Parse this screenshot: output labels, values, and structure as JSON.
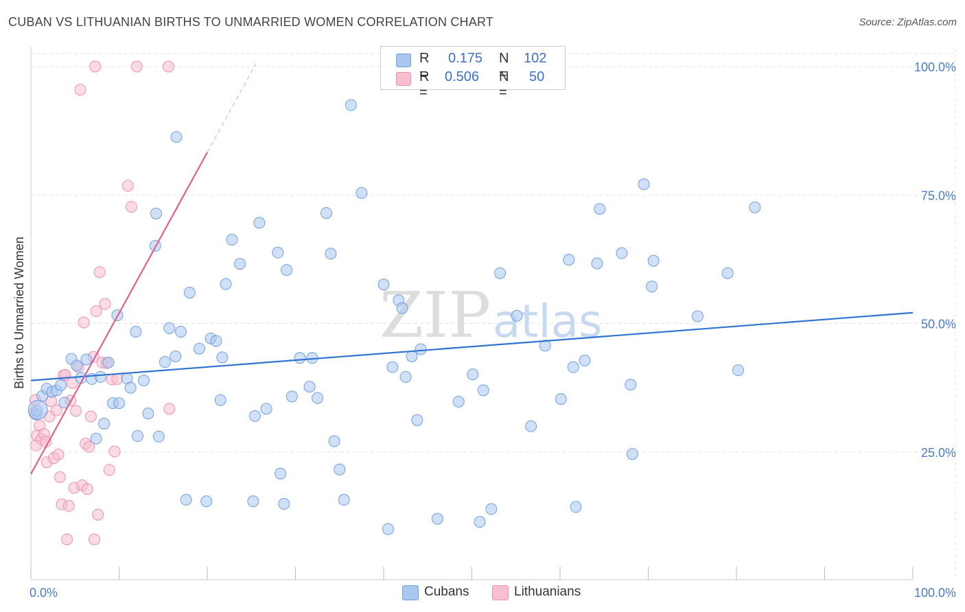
{
  "header": {
    "title": "CUBAN VS LITHUANIAN BIRTHS TO UNMARRIED WOMEN CORRELATION CHART",
    "source": "Source: ZipAtlas.com"
  },
  "watermark": {
    "text_zip": "ZIP",
    "text_atlas": "atlas"
  },
  "legend": {
    "rows": [
      {
        "r_label": "R =",
        "r_value": "0.175",
        "n_label": "N =",
        "n_value": "102"
      },
      {
        "r_label": "R =",
        "r_value": "0.506",
        "n_label": "N =",
        "n_value": "50"
      }
    ],
    "bottom": [
      {
        "name": "Cubans"
      },
      {
        "name": "Lithuanians"
      }
    ]
  },
  "colors": {
    "cubans_fill": "#aac7f0",
    "cubans_stroke": "#6f9fe0",
    "cubans_line": "#2f74d0",
    "lithuanians_fill": "#f7bfd0",
    "lithuanians_stroke": "#ee8fae",
    "lithuanians_line": "#e0608c",
    "tick_label": "#4a7cc9",
    "grid": "#e2e2e2"
  },
  "chart_data": {
    "type": "scatter",
    "title": "CUBAN VS LITHUANIAN BIRTHS TO UNMARRIED WOMEN CORRELATION CHART",
    "xlabel": "",
    "ylabel": "Births to Unmarried Women",
    "xlim": [
      0,
      100
    ],
    "ylim": [
      0,
      102
    ],
    "x_tick_labels": [
      {
        "value": 0,
        "label": "0.0%"
      },
      {
        "value": 100,
        "label": "100.0%"
      }
    ],
    "y_tick_labels": [
      {
        "value": 25,
        "label": "25.0%"
      },
      {
        "value": 50,
        "label": "50.0%"
      },
      {
        "value": 75,
        "label": "75.0%"
      },
      {
        "value": 100,
        "label": "100.0%"
      }
    ],
    "grid": true,
    "legend_position": "top-center",
    "series": [
      {
        "name": "Cubans",
        "r": 0.175,
        "n": 102,
        "trend": {
          "x0": 0,
          "y0": 38.9,
          "x1": 100,
          "y1": 52.1,
          "dashed_extension": false
        },
        "points": [
          [
            0.6,
            32.3
          ],
          [
            0.7,
            33.0
          ],
          [
            1.3,
            35.9
          ],
          [
            1.8,
            37.3
          ],
          [
            2.4,
            36.7
          ],
          [
            2.9,
            37.0
          ],
          [
            3.4,
            38.0
          ],
          [
            3.8,
            34.6
          ],
          [
            4.6,
            43.1
          ],
          [
            5.2,
            41.8
          ],
          [
            5.7,
            39.4
          ],
          [
            6.3,
            43.0
          ],
          [
            6.9,
            39.2
          ],
          [
            7.4,
            27.6
          ],
          [
            7.9,
            39.6
          ],
          [
            8.3,
            30.5
          ],
          [
            8.8,
            42.4
          ],
          [
            9.3,
            34.5
          ],
          [
            10.0,
            34.5
          ],
          [
            9.8,
            51.6
          ],
          [
            10.9,
            39.3
          ],
          [
            11.3,
            37.5
          ],
          [
            11.9,
            48.4
          ],
          [
            12.1,
            28.1
          ],
          [
            12.8,
            38.9
          ],
          [
            13.3,
            32.5
          ],
          [
            14.1,
            65.1
          ],
          [
            14.2,
            71.4
          ],
          [
            14.5,
            28.0
          ],
          [
            15.2,
            42.5
          ],
          [
            15.7,
            49.1
          ],
          [
            16.4,
            43.6
          ],
          [
            16.5,
            86.3
          ],
          [
            17.0,
            48.4
          ],
          [
            17.6,
            15.7
          ],
          [
            18.0,
            56.0
          ],
          [
            19.1,
            45.1
          ],
          [
            19.9,
            15.4
          ],
          [
            20.4,
            47.1
          ],
          [
            21.0,
            46.6
          ],
          [
            21.5,
            35.1
          ],
          [
            21.7,
            43.4
          ],
          [
            22.1,
            57.7
          ],
          [
            22.8,
            66.3
          ],
          [
            23.7,
            61.6
          ],
          [
            25.2,
            15.4
          ],
          [
            25.4,
            32.0
          ],
          [
            25.9,
            69.6
          ],
          [
            26.7,
            33.4
          ],
          [
            28.0,
            63.8
          ],
          [
            28.3,
            20.8
          ],
          [
            28.7,
            14.9
          ],
          [
            29.0,
            60.4
          ],
          [
            29.6,
            35.8
          ],
          [
            30.5,
            43.3
          ],
          [
            31.6,
            37.7
          ],
          [
            31.9,
            43.3
          ],
          [
            32.5,
            35.5
          ],
          [
            33.5,
            71.5
          ],
          [
            34.0,
            63.6
          ],
          [
            34.4,
            27.1
          ],
          [
            35.0,
            21.6
          ],
          [
            35.5,
            15.7
          ],
          [
            36.3,
            92.5
          ],
          [
            37.5,
            75.4
          ],
          [
            40.0,
            57.6
          ],
          [
            40.5,
            10.0
          ],
          [
            41.0,
            41.5
          ],
          [
            41.7,
            54.5
          ],
          [
            42.1,
            53.0
          ],
          [
            42.5,
            39.6
          ],
          [
            43.2,
            43.6
          ],
          [
            43.8,
            31.2
          ],
          [
            44.2,
            45.0
          ],
          [
            46.1,
            12.0
          ],
          [
            48.5,
            34.8
          ],
          [
            50.1,
            40.1
          ],
          [
            50.9,
            11.4
          ],
          [
            51.3,
            37.0
          ],
          [
            52.2,
            13.9
          ],
          [
            53.2,
            59.8
          ],
          [
            55.1,
            51.5
          ],
          [
            56.7,
            30.0
          ],
          [
            58.3,
            45.7
          ],
          [
            60.1,
            35.3
          ],
          [
            61.0,
            62.4
          ],
          [
            61.5,
            41.5
          ],
          [
            61.8,
            14.3
          ],
          [
            62.8,
            42.8
          ],
          [
            64.2,
            61.7
          ],
          [
            64.5,
            72.3
          ],
          [
            67.0,
            63.7
          ],
          [
            68.0,
            38.1
          ],
          [
            68.2,
            24.6
          ],
          [
            69.5,
            77.1
          ],
          [
            70.4,
            57.2
          ],
          [
            70.6,
            62.2
          ],
          [
            75.6,
            51.4
          ],
          [
            79.0,
            59.8
          ],
          [
            80.2,
            40.9
          ],
          [
            82.1,
            72.6
          ],
          [
            0.8,
            33.2
          ]
        ]
      },
      {
        "name": "Lithuanians",
        "r": 0.506,
        "n": 50,
        "trend": {
          "x0": 0,
          "y0": 20.7,
          "x1": 20,
          "y1": 83.3,
          "dashed_extension": true,
          "dash_to_x": 25.5,
          "dash_to_y": 100.5
        },
        "points": [
          [
            0.4,
            32.6
          ],
          [
            0.5,
            35.1
          ],
          [
            0.6,
            26.3
          ],
          [
            0.7,
            28.2
          ],
          [
            1.0,
            30.1
          ],
          [
            1.2,
            27.5
          ],
          [
            1.5,
            28.5
          ],
          [
            1.7,
            27.0
          ],
          [
            1.8,
            23.0
          ],
          [
            2.1,
            31.9
          ],
          [
            2.3,
            34.9
          ],
          [
            2.6,
            23.8
          ],
          [
            2.9,
            33.1
          ],
          [
            3.1,
            24.5
          ],
          [
            3.3,
            20.1
          ],
          [
            3.5,
            14.8
          ],
          [
            3.7,
            39.9
          ],
          [
            3.9,
            40.0
          ],
          [
            4.1,
            8.0
          ],
          [
            4.3,
            14.5
          ],
          [
            4.5,
            35.0
          ],
          [
            4.7,
            38.4
          ],
          [
            4.9,
            18.0
          ],
          [
            5.1,
            33.0
          ],
          [
            5.4,
            41.5
          ],
          [
            5.6,
            95.5
          ],
          [
            5.8,
            18.5
          ],
          [
            6.0,
            50.2
          ],
          [
            6.2,
            26.6
          ],
          [
            6.4,
            17.8
          ],
          [
            6.6,
            26.0
          ],
          [
            6.8,
            31.9
          ],
          [
            7.1,
            43.5
          ],
          [
            7.2,
            8.0
          ],
          [
            7.3,
            100.0
          ],
          [
            7.4,
            52.4
          ],
          [
            7.6,
            12.8
          ],
          [
            7.8,
            60.0
          ],
          [
            8.1,
            42.4
          ],
          [
            8.4,
            53.8
          ],
          [
            8.9,
            21.5
          ],
          [
            9.2,
            39.1
          ],
          [
            9.5,
            25.1
          ],
          [
            9.8,
            39.2
          ],
          [
            11.0,
            76.8
          ],
          [
            11.4,
            72.7
          ],
          [
            12.0,
            100.0
          ],
          [
            15.7,
            33.4
          ],
          [
            15.6,
            100.0
          ],
          [
            8.6,
            42.3
          ]
        ]
      }
    ]
  }
}
